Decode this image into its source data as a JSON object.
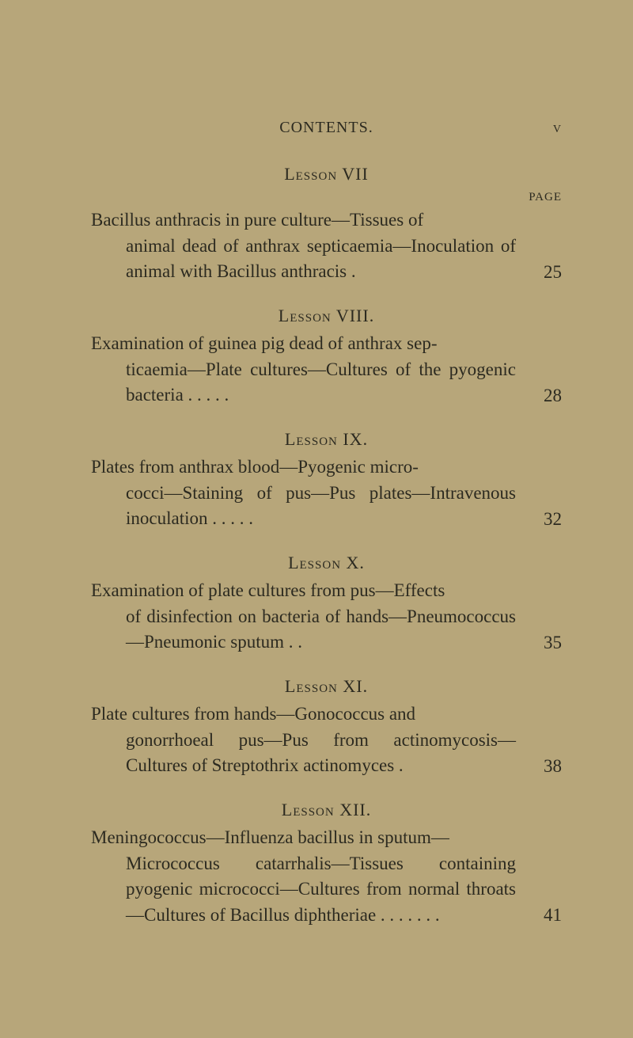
{
  "runningHead": {
    "center": "CONTENTS.",
    "folio": "v"
  },
  "pageLabel": "PAGE",
  "lessons": [
    {
      "heading": "Lesson VII",
      "line1": "Bacillus anthracis in pure culture—Tissues of",
      "cont": "animal dead of anthrax septicaemia—Inoculation of animal with Bacillus anthracis   .",
      "page": "25",
      "showPageLabel": true
    },
    {
      "heading": "Lesson VIII.",
      "line1": "Examination of guinea pig dead of anthrax sep-",
      "cont": "ticaemia—Plate cultures—Cultures of the pyogenic bacteria .        .        .        .        .",
      "page": "28"
    },
    {
      "heading": "Lesson IX.",
      "line1": "Plates  from  anthrax  blood—Pyogenic  micro-",
      "cont": "cocci—Staining of pus—Pus plates—Intravenous inoculation .        .        .        .        .",
      "page": "32"
    },
    {
      "heading": "Lesson X.",
      "line1": "Examination of plate cultures from pus—Effects",
      "cont": "of disinfection on bacteria of hands—Pneumococcus—Pneumonic sputum        .        .",
      "page": "35"
    },
    {
      "heading": "Lesson XI.",
      "line1": "Plate  cultures  from   hands—Gonococcus  and",
      "cont": "gonorrhoeal pus—Pus from actinomycosis— Cultures of Streptothrix actinomyces        .",
      "page": "38"
    },
    {
      "heading": "Lesson XII.",
      "line1": "Meningococcus—Influenza bacillus in sputum—",
      "cont": "Micrococcus catarrhalis—Tissues containing pyogenic micrococci—Cultures from normal throats—Cultures of Bacillus diphtheriae .        .        .        .        .        .        .",
      "page": "41"
    }
  ]
}
